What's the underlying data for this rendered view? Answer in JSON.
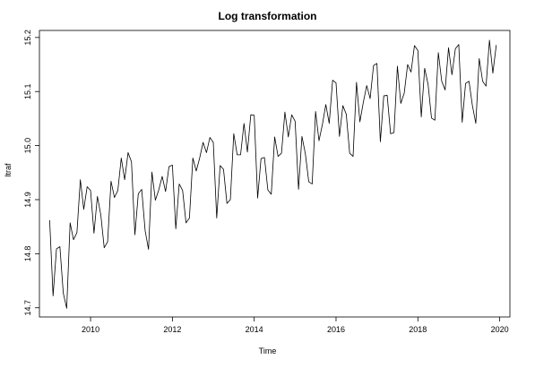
{
  "chart_data": {
    "type": "line",
    "title": "Log transformation",
    "xlabel": "Time",
    "ylabel": "ltraf",
    "xlim": [
      2008.75,
      2020.25
    ],
    "ylim": [
      14.683,
      15.213
    ],
    "xticks": [
      2010,
      2012,
      2014,
      2016,
      2018,
      2020
    ],
    "xtick_labels": [
      "2010",
      "2012",
      "2014",
      "2016",
      "2018",
      "2020"
    ],
    "yticks": [
      14.7,
      14.8,
      14.9,
      15.0,
      15.1,
      15.2
    ],
    "ytick_labels": [
      "14.7",
      "14.8",
      "14.9",
      "15.0",
      "15.1",
      "15.2"
    ],
    "grid": false,
    "legend": "none",
    "line_color": "#000000",
    "series": [
      {
        "start_year": 2009,
        "frequency": 12,
        "values": [
          14.862,
          14.722,
          14.809,
          14.813,
          14.727,
          14.699,
          14.857,
          14.826,
          14.839,
          14.937,
          14.882,
          14.924,
          14.917,
          14.838,
          14.906,
          14.872,
          14.811,
          14.822,
          14.934,
          14.904,
          14.917,
          14.977,
          14.937,
          14.987,
          14.97,
          14.835,
          14.911,
          14.919,
          14.843,
          14.808,
          14.951,
          14.899,
          14.918,
          14.943,
          14.915,
          14.961,
          14.964,
          14.846,
          14.929,
          14.917,
          14.857,
          14.866,
          14.977,
          14.953,
          14.977,
          15.006,
          14.987,
          15.015,
          15.006,
          14.866,
          14.963,
          14.956,
          14.893,
          14.9,
          15.022,
          14.983,
          14.983,
          15.041,
          14.988,
          15.057,
          15.056,
          14.903,
          14.976,
          14.978,
          14.918,
          14.91,
          15.016,
          14.98,
          14.986,
          15.062,
          15.016,
          15.057,
          15.045,
          14.919,
          15.017,
          14.985,
          14.933,
          14.929,
          15.063,
          15.009,
          15.039,
          15.076,
          15.041,
          15.121,
          15.116,
          15.017,
          15.074,
          15.058,
          14.986,
          14.98,
          15.117,
          15.044,
          15.08,
          15.111,
          15.087,
          15.148,
          15.152,
          15.007,
          15.092,
          15.093,
          15.022,
          15.024,
          15.147,
          15.078,
          15.097,
          15.15,
          15.136,
          15.185,
          15.176,
          15.053,
          15.143,
          15.113,
          15.051,
          15.047,
          15.172,
          15.119,
          15.103,
          15.181,
          15.131,
          15.179,
          15.187,
          15.043,
          15.115,
          15.119,
          15.074,
          15.041,
          15.161,
          15.119,
          15.11,
          15.195,
          15.134,
          15.186
        ]
      }
    ]
  }
}
